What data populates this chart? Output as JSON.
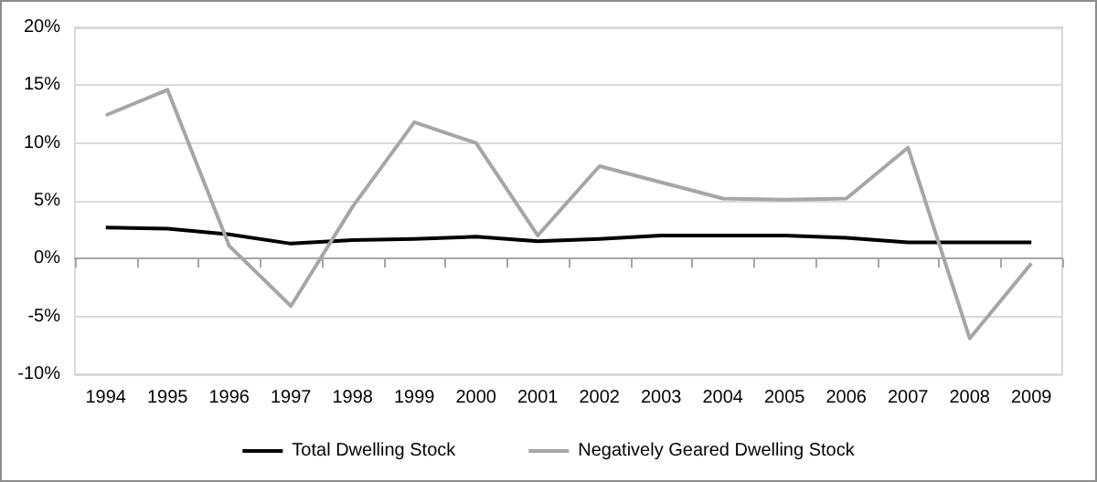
{
  "chart_data": {
    "type": "line",
    "categories": [
      "1994",
      "1995",
      "1996",
      "1997",
      "1998",
      "1999",
      "2000",
      "2001",
      "2002",
      "2003",
      "2004",
      "2005",
      "2006",
      "2007",
      "2008",
      "2009"
    ],
    "series": [
      {
        "name": "Total Dwelling Stock",
        "color": "#000000",
        "values": [
          2.7,
          2.6,
          2.1,
          1.3,
          1.6,
          1.7,
          1.9,
          1.5,
          1.7,
          2.0,
          2.0,
          2.0,
          1.8,
          1.4,
          1.4,
          1.4
        ]
      },
      {
        "name": "Negatively Geared Dwelling Stock",
        "color": "#a6a6a6",
        "values": [
          12.4,
          14.6,
          1.1,
          -4.1,
          4.5,
          11.8,
          10.0,
          2.0,
          8.0,
          6.6,
          5.2,
          5.1,
          5.2,
          9.6,
          -6.9,
          -0.4
        ]
      }
    ],
    "ylim": [
      -10,
      20
    ],
    "yticks": [
      {
        "value": -10,
        "label": "-10%"
      },
      {
        "value": -5,
        "label": "-5%"
      },
      {
        "value": 0,
        "label": "0%"
      },
      {
        "value": 5,
        "label": "5%"
      },
      {
        "value": 10,
        "label": "10%"
      },
      {
        "value": 15,
        "label": "15%"
      },
      {
        "value": 20,
        "label": "20%"
      }
    ],
    "grid": "y",
    "legend": "bottom",
    "marker": "none",
    "line_style": "solid"
  }
}
